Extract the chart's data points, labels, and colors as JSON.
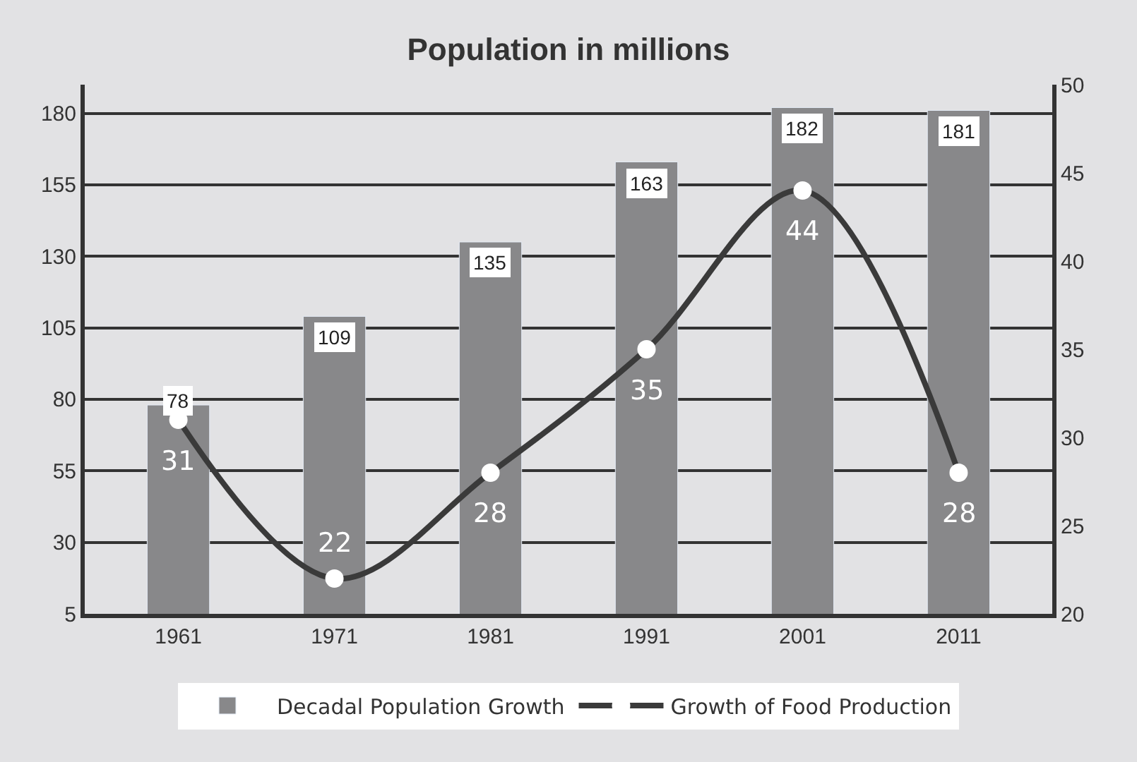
{
  "chart_data": {
    "type": "bar",
    "title": "Population in millions",
    "categories": [
      "1961",
      "1971",
      "1981",
      "1991",
      "2001",
      "2011"
    ],
    "series": [
      {
        "name": "Decadal Population Growth",
        "color": "#88888a",
        "values": [
          78,
          109,
          135,
          163,
          182,
          181
        ]
      },
      {
        "name": "Growth of Food Production",
        "type": "line",
        "axis": "y2",
        "color": "#3a3a3a",
        "marker": "circle",
        "values": [
          31,
          22,
          28,
          35,
          44,
          28
        ]
      }
    ],
    "ylim": [
      5,
      190
    ],
    "yticks": [
      5,
      30,
      55,
      80,
      105,
      130,
      155,
      180
    ],
    "y2lim": [
      20,
      50
    ],
    "y2ticks": [
      20,
      25,
      30,
      35,
      40,
      45,
      50
    ],
    "data_labels": true,
    "grid": "y",
    "legend": "bottom"
  }
}
